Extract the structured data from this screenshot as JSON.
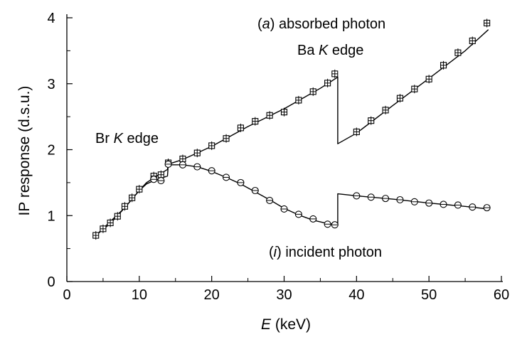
{
  "chart_data": {
    "type": "scatter",
    "xlabel_symbol": "E",
    "xlabel_unit": " (keV)",
    "ylabel": "IP response (d.s.u.)",
    "xlim": [
      0,
      60
    ],
    "ylim": [
      0,
      4
    ],
    "x_ticks": [
      "0",
      "10",
      "20",
      "30",
      "40",
      "50",
      "60"
    ],
    "y_ticks": [
      "0",
      "1",
      "2",
      "3",
      "4"
    ],
    "grid": false,
    "annotations": {
      "absorbed": {
        "pre": "(",
        "ital": "a",
        "post": ") absorbed photon"
      },
      "ba_edge": {
        "pre": "Ba ",
        "ital": "K",
        "post": " edge"
      },
      "br_edge": {
        "pre": "Br ",
        "ital": "K",
        "post": " edge"
      },
      "incident": {
        "pre": "(",
        "ital": "i",
        "post": ") incident photon"
      }
    },
    "series": [
      {
        "marker": "square",
        "points": [
          [
            4,
            0.7
          ],
          [
            5,
            0.8
          ],
          [
            6,
            0.89
          ],
          [
            7,
            0.99
          ],
          [
            8,
            1.14
          ],
          [
            9,
            1.27
          ],
          [
            10,
            1.4
          ],
          [
            12,
            1.6
          ],
          [
            13,
            1.62
          ],
          [
            14,
            1.8
          ],
          [
            16,
            1.86
          ],
          [
            18,
            1.95
          ],
          [
            20,
            2.06
          ],
          [
            22,
            2.17
          ],
          [
            24,
            2.33
          ],
          [
            26,
            2.43
          ],
          [
            28,
            2.52
          ],
          [
            30,
            2.57
          ],
          [
            32,
            2.75
          ],
          [
            34,
            2.88
          ],
          [
            36,
            3.01
          ],
          [
            37,
            3.15
          ],
          [
            40,
            2.27
          ],
          [
            42,
            2.44
          ],
          [
            44,
            2.6
          ],
          [
            46,
            2.78
          ],
          [
            48,
            2.92
          ],
          [
            50,
            3.07
          ],
          [
            52,
            3.28
          ],
          [
            54,
            3.47
          ],
          [
            56,
            3.65
          ],
          [
            58,
            3.92
          ]
        ],
        "curve": [
          [
            4,
            0.7
          ],
          [
            6,
            0.88
          ],
          [
            8,
            1.12
          ],
          [
            10,
            1.38
          ],
          [
            11,
            1.5
          ],
          [
            12,
            1.57
          ],
          [
            13,
            1.64
          ],
          [
            13.9,
            1.7
          ],
          [
            14,
            1.78
          ],
          [
            16,
            1.85
          ],
          [
            20,
            2.05
          ],
          [
            25,
            2.35
          ],
          [
            30,
            2.62
          ],
          [
            35,
            2.93
          ],
          [
            37.4,
            3.1
          ],
          [
            37.4,
            2.09
          ],
          [
            40,
            2.25
          ],
          [
            45,
            2.67
          ],
          [
            50,
            3.08
          ],
          [
            55,
            3.5
          ],
          [
            58.2,
            3.82
          ]
        ]
      },
      {
        "marker": "circle",
        "points": [
          [
            12,
            1.55
          ],
          [
            13,
            1.53
          ],
          [
            14,
            1.78
          ],
          [
            16,
            1.77
          ],
          [
            18,
            1.74
          ],
          [
            20,
            1.68
          ],
          [
            22,
            1.58
          ],
          [
            24,
            1.5
          ],
          [
            26,
            1.38
          ],
          [
            28,
            1.23
          ],
          [
            30,
            1.1
          ],
          [
            32,
            1.02
          ],
          [
            34,
            0.95
          ],
          [
            36,
            0.87
          ],
          [
            37,
            0.86
          ],
          [
            40,
            1.3
          ],
          [
            42,
            1.28
          ],
          [
            44,
            1.26
          ],
          [
            46,
            1.24
          ],
          [
            48,
            1.21
          ],
          [
            50,
            1.19
          ],
          [
            52,
            1.17
          ],
          [
            54,
            1.16
          ],
          [
            56,
            1.13
          ],
          [
            58,
            1.12
          ]
        ],
        "curve": [
          [
            4,
            0.7
          ],
          [
            8,
            1.12
          ],
          [
            10,
            1.38
          ],
          [
            11,
            1.48
          ],
          [
            12,
            1.53
          ],
          [
            13.9,
            1.6
          ],
          [
            14,
            1.77
          ],
          [
            16,
            1.77
          ],
          [
            18,
            1.74
          ],
          [
            20,
            1.67
          ],
          [
            22,
            1.58
          ],
          [
            24,
            1.48
          ],
          [
            26,
            1.36
          ],
          [
            28,
            1.24
          ],
          [
            30,
            1.11
          ],
          [
            32,
            1.01
          ],
          [
            34,
            0.93
          ],
          [
            36,
            0.88
          ],
          [
            37.4,
            0.87
          ],
          [
            37.4,
            1.33
          ],
          [
            40,
            1.3
          ],
          [
            45,
            1.25
          ],
          [
            50,
            1.19
          ],
          [
            55,
            1.14
          ],
          [
            58.2,
            1.1
          ]
        ]
      }
    ]
  }
}
